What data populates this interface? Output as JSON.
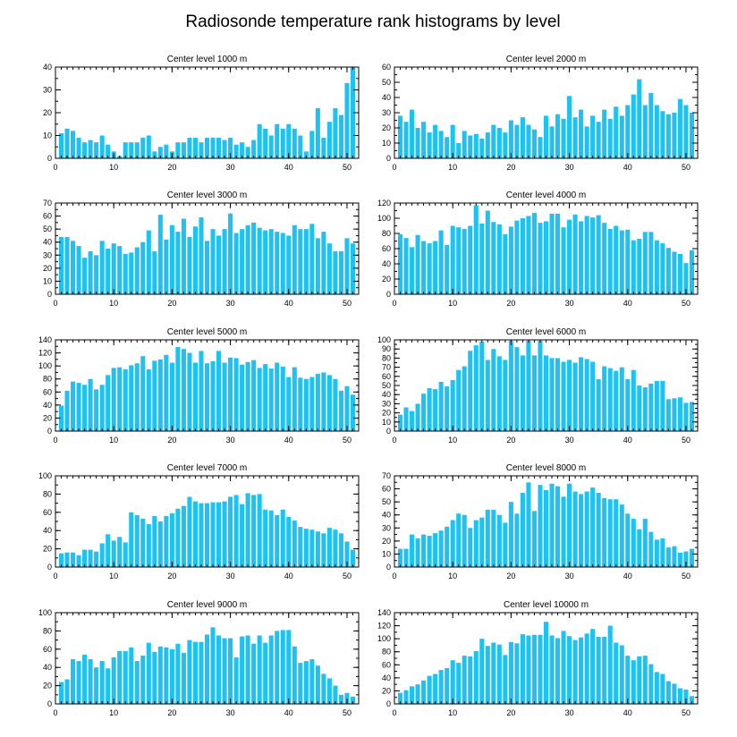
{
  "figure": {
    "title": "Radiosonde temperature rank histograms by level"
  },
  "colors": {
    "bar": "#1ec2f2",
    "axis": "#000000",
    "background": "#ffffff"
  },
  "chart_data": [
    {
      "type": "bar",
      "title": "Center level 1000 m",
      "xlabel": "",
      "ylabel": "",
      "xlim": [
        0,
        52
      ],
      "ylim": [
        0,
        40
      ],
      "xticks": [
        0,
        10,
        20,
        30,
        40,
        50
      ],
      "yticks": [
        0,
        10,
        20,
        30,
        40
      ],
      "x": [
        1,
        2,
        3,
        4,
        5,
        6,
        7,
        8,
        9,
        10,
        11,
        12,
        13,
        14,
        15,
        16,
        17,
        18,
        19,
        20,
        21,
        22,
        23,
        24,
        25,
        26,
        27,
        28,
        29,
        30,
        31,
        32,
        33,
        34,
        35,
        36,
        37,
        38,
        39,
        40,
        41,
        42,
        43,
        44,
        45,
        46,
        47,
        48,
        49,
        50,
        51
      ],
      "values": [
        11,
        13,
        12,
        9,
        7,
        8,
        7,
        10,
        6,
        3,
        1,
        7,
        7,
        7,
        9,
        10,
        3,
        5,
        6,
        3,
        7,
        7,
        9,
        9,
        7,
        9,
        9,
        9,
        8,
        9,
        6,
        7,
        5,
        8,
        15,
        13,
        10,
        15,
        13,
        15,
        13,
        10,
        3,
        12,
        22,
        9,
        16,
        22,
        19,
        33,
        40
      ]
    },
    {
      "type": "bar",
      "title": "Center level 2000 m",
      "xlabel": "",
      "ylabel": "",
      "xlim": [
        0,
        52
      ],
      "ylim": [
        0,
        60
      ],
      "xticks": [
        0,
        10,
        20,
        30,
        40,
        50
      ],
      "yticks": [
        0,
        10,
        20,
        30,
        40,
        50,
        60
      ],
      "x": [
        1,
        2,
        3,
        4,
        5,
        6,
        7,
        8,
        9,
        10,
        11,
        12,
        13,
        14,
        15,
        16,
        17,
        18,
        19,
        20,
        21,
        22,
        23,
        24,
        25,
        26,
        27,
        28,
        29,
        30,
        31,
        32,
        33,
        34,
        35,
        36,
        37,
        38,
        39,
        40,
        41,
        42,
        43,
        44,
        45,
        46,
        47,
        48,
        49,
        50,
        51
      ],
      "values": [
        28,
        24,
        32,
        20,
        24,
        17,
        22,
        18,
        14,
        22,
        10,
        18,
        15,
        16,
        13,
        17,
        22,
        20,
        17,
        25,
        22,
        27,
        22,
        19,
        14,
        28,
        21,
        29,
        26,
        41,
        27,
        32,
        21,
        28,
        24,
        32,
        26,
        34,
        28,
        35,
        42,
        52,
        35,
        43,
        35,
        31,
        29,
        30,
        39,
        35,
        30
      ]
    },
    {
      "type": "bar",
      "title": "Center level 3000 m",
      "xlabel": "",
      "ylabel": "",
      "xlim": [
        0,
        52
      ],
      "ylim": [
        0,
        70
      ],
      "xticks": [
        0,
        10,
        20,
        30,
        40,
        50
      ],
      "yticks": [
        0,
        10,
        20,
        30,
        40,
        50,
        60,
        70
      ],
      "x": [
        1,
        2,
        3,
        4,
        5,
        6,
        7,
        8,
        9,
        10,
        11,
        12,
        13,
        14,
        15,
        16,
        17,
        18,
        19,
        20,
        21,
        22,
        23,
        24,
        25,
        26,
        27,
        28,
        29,
        30,
        31,
        32,
        33,
        34,
        35,
        36,
        37,
        38,
        39,
        40,
        41,
        42,
        43,
        44,
        45,
        46,
        47,
        48,
        49,
        50,
        51
      ],
      "values": [
        44,
        44,
        41,
        37,
        28,
        33,
        30,
        41,
        35,
        39,
        37,
        31,
        32,
        36,
        40,
        49,
        33,
        61,
        42,
        53,
        48,
        58,
        44,
        52,
        59,
        41,
        50,
        45,
        50,
        62,
        47,
        50,
        53,
        55,
        51,
        49,
        50,
        48,
        47,
        45,
        53,
        50,
        50,
        54,
        43,
        48,
        39,
        33,
        33,
        43,
        39
      ]
    },
    {
      "type": "bar",
      "title": "Center level 4000 m",
      "xlabel": "",
      "ylabel": "",
      "xlim": [
        0,
        52
      ],
      "ylim": [
        0,
        120
      ],
      "xticks": [
        0,
        10,
        20,
        30,
        40,
        50
      ],
      "yticks": [
        0,
        20,
        40,
        60,
        80,
        100,
        120
      ],
      "x": [
        1,
        2,
        3,
        4,
        5,
        6,
        7,
        8,
        9,
        10,
        11,
        12,
        13,
        14,
        15,
        16,
        17,
        18,
        19,
        20,
        21,
        22,
        23,
        24,
        25,
        26,
        27,
        28,
        29,
        30,
        31,
        32,
        33,
        34,
        35,
        36,
        37,
        38,
        39,
        40,
        41,
        42,
        43,
        44,
        45,
        46,
        47,
        48,
        49,
        50,
        51
      ],
      "values": [
        79,
        74,
        62,
        78,
        70,
        67,
        70,
        84,
        65,
        90,
        88,
        86,
        90,
        117,
        93,
        110,
        95,
        92,
        79,
        89,
        97,
        100,
        103,
        107,
        94,
        96,
        106,
        106,
        88,
        98,
        105,
        96,
        103,
        101,
        104,
        94,
        86,
        90,
        84,
        85,
        71,
        73,
        82,
        82,
        71,
        67,
        61,
        56,
        53,
        41,
        58
      ]
    },
    {
      "type": "bar",
      "title": "Center level 5000 m",
      "xlabel": "",
      "ylabel": "",
      "xlim": [
        0,
        52
      ],
      "ylim": [
        0,
        140
      ],
      "xticks": [
        0,
        10,
        20,
        30,
        40,
        50
      ],
      "yticks": [
        0,
        20,
        40,
        60,
        80,
        100,
        120,
        140
      ],
      "x": [
        1,
        2,
        3,
        4,
        5,
        6,
        7,
        8,
        9,
        10,
        11,
        12,
        13,
        14,
        15,
        16,
        17,
        18,
        19,
        20,
        21,
        22,
        23,
        24,
        25,
        26,
        27,
        28,
        29,
        30,
        31,
        32,
        33,
        34,
        35,
        36,
        37,
        38,
        39,
        40,
        41,
        42,
        43,
        44,
        45,
        46,
        47,
        48,
        49,
        50,
        51
      ],
      "values": [
        39,
        62,
        76,
        74,
        71,
        80,
        64,
        71,
        86,
        97,
        98,
        95,
        101,
        104,
        115,
        95,
        108,
        110,
        117,
        105,
        129,
        126,
        120,
        105,
        123,
        104,
        107,
        123,
        105,
        113,
        112,
        102,
        106,
        109,
        97,
        103,
        96,
        105,
        99,
        83,
        98,
        82,
        80,
        83,
        88,
        90,
        86,
        80,
        62,
        69,
        56
      ]
    },
    {
      "type": "bar",
      "title": "Center level 6000 m",
      "xlabel": "",
      "ylabel": "",
      "xlim": [
        0,
        52
      ],
      "ylim": [
        0,
        100
      ],
      "xticks": [
        0,
        10,
        20,
        30,
        40,
        50
      ],
      "yticks": [
        0,
        10,
        20,
        30,
        40,
        50,
        60,
        70,
        80,
        90,
        100
      ],
      "x": [
        1,
        2,
        3,
        4,
        5,
        6,
        7,
        8,
        9,
        10,
        11,
        12,
        13,
        14,
        15,
        16,
        17,
        18,
        19,
        20,
        21,
        22,
        23,
        24,
        25,
        26,
        27,
        28,
        29,
        30,
        31,
        32,
        33,
        34,
        35,
        36,
        37,
        38,
        39,
        40,
        41,
        42,
        43,
        44,
        45,
        46,
        47,
        48,
        49,
        50,
        51
      ],
      "values": [
        18,
        26,
        22,
        30,
        41,
        47,
        46,
        54,
        49,
        56,
        67,
        71,
        88,
        94,
        98,
        78,
        90,
        82,
        78,
        99,
        92,
        83,
        99,
        83,
        99,
        83,
        80,
        80,
        76,
        78,
        75,
        81,
        79,
        76,
        57,
        71,
        69,
        66,
        70,
        57,
        67,
        50,
        48,
        52,
        55,
        55,
        35,
        36,
        37,
        31,
        32
      ]
    },
    {
      "type": "bar",
      "title": "Center level 7000 m",
      "xlabel": "",
      "ylabel": "",
      "xlim": [
        0,
        52
      ],
      "ylim": [
        0,
        100
      ],
      "xticks": [
        0,
        10,
        20,
        30,
        40,
        50
      ],
      "yticks": [
        0,
        20,
        40,
        60,
        80,
        100
      ],
      "x": [
        1,
        2,
        3,
        4,
        5,
        6,
        7,
        8,
        9,
        10,
        11,
        12,
        13,
        14,
        15,
        16,
        17,
        18,
        19,
        20,
        21,
        22,
        23,
        24,
        25,
        26,
        27,
        28,
        29,
        30,
        31,
        32,
        33,
        34,
        35,
        36,
        37,
        38,
        39,
        40,
        41,
        42,
        43,
        44,
        45,
        46,
        47,
        48,
        49,
        50,
        51
      ],
      "values": [
        15,
        16,
        16,
        13,
        19,
        19,
        17,
        26,
        36,
        29,
        33,
        27,
        60,
        57,
        53,
        47,
        56,
        50,
        56,
        59,
        64,
        67,
        77,
        72,
        70,
        70,
        71,
        71,
        72,
        77,
        79,
        69,
        81,
        79,
        80,
        63,
        62,
        57,
        63,
        55,
        51,
        44,
        42,
        41,
        39,
        37,
        43,
        41,
        37,
        28,
        19
      ]
    },
    {
      "type": "bar",
      "title": "Center level 8000 m",
      "xlabel": "",
      "ylabel": "",
      "xlim": [
        0,
        52
      ],
      "ylim": [
        0,
        70
      ],
      "xticks": [
        0,
        10,
        20,
        30,
        40,
        50
      ],
      "yticks": [
        0,
        10,
        20,
        30,
        40,
        50,
        60,
        70
      ],
      "x": [
        1,
        2,
        3,
        4,
        5,
        6,
        7,
        8,
        9,
        10,
        11,
        12,
        13,
        14,
        15,
        16,
        17,
        18,
        19,
        20,
        21,
        22,
        23,
        24,
        25,
        26,
        27,
        28,
        29,
        30,
        31,
        32,
        33,
        34,
        35,
        36,
        37,
        38,
        39,
        40,
        41,
        42,
        43,
        44,
        45,
        46,
        47,
        48,
        49,
        50,
        51
      ],
      "values": [
        14,
        14,
        25,
        22,
        25,
        24,
        26,
        28,
        31,
        36,
        41,
        40,
        30,
        36,
        38,
        44,
        44,
        40,
        34,
        50,
        41,
        57,
        65,
        43,
        63,
        59,
        64,
        62,
        54,
        64,
        58,
        56,
        58,
        61,
        57,
        53,
        52,
        52,
        48,
        41,
        37,
        29,
        37,
        27,
        21,
        22,
        15,
        16,
        11,
        12,
        14
      ]
    },
    {
      "type": "bar",
      "title": "Center level 9000 m",
      "xlabel": "",
      "ylabel": "",
      "xlim": [
        0,
        52
      ],
      "ylim": [
        0,
        100
      ],
      "xticks": [
        0,
        10,
        20,
        30,
        40,
        50
      ],
      "yticks": [
        0,
        20,
        40,
        60,
        80,
        100
      ],
      "x": [
        1,
        2,
        3,
        4,
        5,
        6,
        7,
        8,
        9,
        10,
        11,
        12,
        13,
        14,
        15,
        16,
        17,
        18,
        19,
        20,
        21,
        22,
        23,
        24,
        25,
        26,
        27,
        28,
        29,
        30,
        31,
        32,
        33,
        34,
        35,
        36,
        37,
        38,
        39,
        40,
        41,
        42,
        43,
        44,
        45,
        46,
        47,
        48,
        49,
        50,
        51
      ],
      "values": [
        24,
        27,
        49,
        47,
        54,
        49,
        40,
        47,
        39,
        51,
        58,
        58,
        62,
        47,
        53,
        67,
        57,
        63,
        62,
        60,
        66,
        56,
        70,
        68,
        68,
        76,
        84,
        75,
        72,
        72,
        51,
        74,
        75,
        66,
        75,
        67,
        75,
        80,
        81,
        81,
        63,
        45,
        47,
        49,
        42,
        33,
        28,
        20,
        10,
        12,
        8
      ]
    },
    {
      "type": "bar",
      "title": "Center level 10000 m",
      "xlabel": "",
      "ylabel": "",
      "xlim": [
        0,
        52
      ],
      "ylim": [
        0,
        140
      ],
      "xticks": [
        0,
        10,
        20,
        30,
        40,
        50
      ],
      "yticks": [
        0,
        20,
        40,
        60,
        80,
        100,
        120,
        140
      ],
      "x": [
        1,
        2,
        3,
        4,
        5,
        6,
        7,
        8,
        9,
        10,
        11,
        12,
        13,
        14,
        15,
        16,
        17,
        18,
        19,
        20,
        21,
        22,
        23,
        24,
        25,
        26,
        27,
        28,
        29,
        30,
        31,
        32,
        33,
        34,
        35,
        36,
        37,
        38,
        39,
        40,
        41,
        42,
        43,
        44,
        45,
        46,
        47,
        48,
        49,
        50,
        51
      ],
      "values": [
        17,
        21,
        27,
        30,
        36,
        43,
        46,
        52,
        55,
        67,
        63,
        74,
        73,
        81,
        100,
        89,
        94,
        91,
        75,
        95,
        93,
        107,
        105,
        106,
        106,
        126,
        105,
        101,
        112,
        104,
        98,
        102,
        108,
        115,
        103,
        103,
        120,
        94,
        90,
        74,
        67,
        73,
        74,
        61,
        49,
        46,
        35,
        31,
        24,
        22,
        12
      ]
    }
  ]
}
